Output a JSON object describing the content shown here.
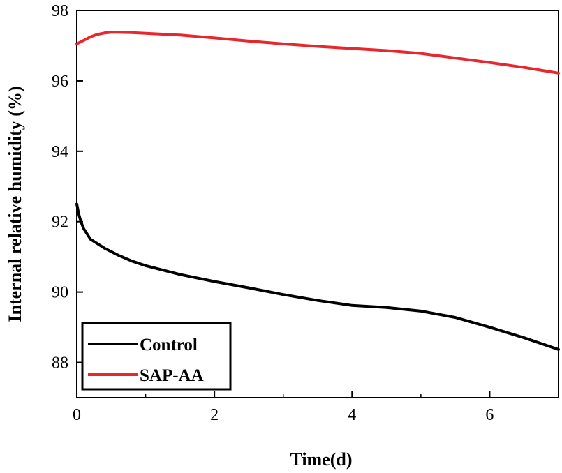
{
  "chart_data": {
    "type": "line",
    "title": "",
    "xlabel": "Time(d)",
    "ylabel": "Internal relative humidity (%)",
    "xlim": [
      0,
      7
    ],
    "ylim": [
      87,
      98
    ],
    "xticks": [
      0,
      2,
      4,
      6
    ],
    "xtick_labels": [
      "0",
      "2",
      "4",
      "6"
    ],
    "yticks": [
      88,
      90,
      92,
      94,
      96,
      98
    ],
    "ytick_labels": [
      "88",
      "90",
      "92",
      "94",
      "96",
      "98"
    ],
    "grid": false,
    "legend_position": "bottom-left",
    "legend": [
      "Control",
      "SAP-AA"
    ],
    "series": [
      {
        "name": "SAP-AA",
        "color": "#e8262b",
        "x": [
          0,
          0.1,
          0.2,
          0.3,
          0.4,
          0.5,
          0.6,
          0.8,
          1.0,
          1.5,
          2.0,
          2.5,
          3.0,
          3.5,
          4.0,
          4.5,
          5.0,
          5.5,
          6.0,
          6.5,
          7.0
        ],
        "values": [
          97.05,
          97.15,
          97.25,
          97.32,
          97.36,
          97.38,
          97.38,
          97.37,
          97.35,
          97.3,
          97.22,
          97.13,
          97.05,
          96.98,
          96.92,
          96.86,
          96.78,
          96.65,
          96.52,
          96.38,
          96.22
        ]
      },
      {
        "name": "Control",
        "color": "#000000",
        "x": [
          0,
          0.03,
          0.06,
          0.1,
          0.2,
          0.4,
          0.6,
          0.8,
          1.0,
          1.5,
          2.0,
          2.5,
          3.0,
          3.5,
          4.0,
          4.5,
          5.0,
          5.5,
          6.0,
          6.5,
          7.0
        ],
        "values": [
          92.5,
          92.2,
          92.0,
          91.8,
          91.5,
          91.25,
          91.05,
          90.88,
          90.75,
          90.5,
          90.3,
          90.12,
          89.93,
          89.76,
          89.62,
          89.56,
          89.46,
          89.28,
          89.0,
          88.7,
          88.37
        ]
      }
    ]
  }
}
